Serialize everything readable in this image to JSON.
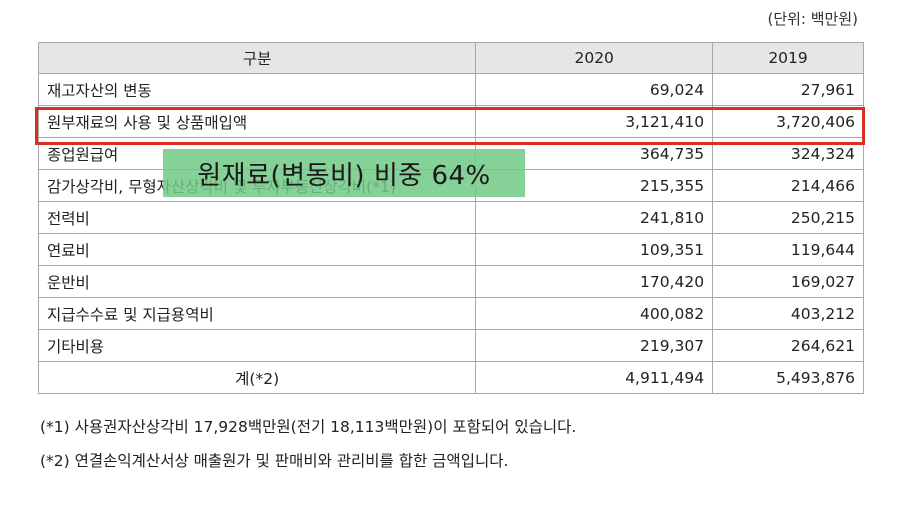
{
  "unit_note": "(단위: 백만원)",
  "table": {
    "headers": [
      "구분",
      "2020",
      "2019"
    ],
    "rows": [
      {
        "item": "재고자산의 변동",
        "y2020": "69,024",
        "y2019": "27,961"
      },
      {
        "item": "원부재료의 사용 및 상품매입액",
        "y2020": "3,121,410",
        "y2019": "3,720,406"
      },
      {
        "item": "종업원급여",
        "y2020": "364,735",
        "y2019": "324,324"
      },
      {
        "item": "감가상각비, 무형자산상각비 및 투자부동산상각비(*1)",
        "y2020": "215,355",
        "y2019": "214,466"
      },
      {
        "item": "전력비",
        "y2020": "241,810",
        "y2019": "250,215"
      },
      {
        "item": "연료비",
        "y2020": "109,351",
        "y2019": "119,644"
      },
      {
        "item": "운반비",
        "y2020": "170,420",
        "y2019": "169,027"
      },
      {
        "item": "지급수수료 및 지급용역비",
        "y2020": "400,082",
        "y2019": "403,212"
      },
      {
        "item": "기타비용",
        "y2020": "219,307",
        "y2019": "264,621"
      }
    ],
    "total": {
      "item": "계(*2)",
      "y2020": "4,911,494",
      "y2019": "5,493,876"
    }
  },
  "annotation": {
    "overlay_text": "원재료(변동비) 비중 64%",
    "highlight_color": "#d93025",
    "overlay_color": "#70c986"
  },
  "notes": [
    "(*1) 사용권자산상각비 17,928백만원(전기 18,113백만원)이 포함되어 있습니다.",
    "(*2) 연결손익계산서상 매출원가 및 판매비와 관리비를 합한 금액입니다."
  ]
}
